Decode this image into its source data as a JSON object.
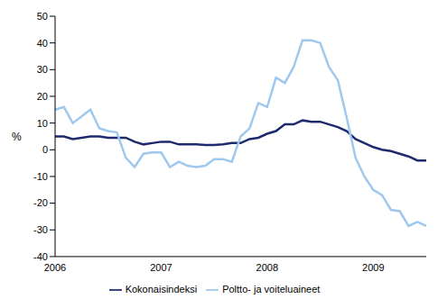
{
  "chart_data": {
    "type": "line",
    "y_label": "%",
    "categories": [
      "2006",
      null,
      null,
      null,
      null,
      null,
      null,
      null,
      null,
      null,
      null,
      null,
      "2007",
      null,
      null,
      null,
      null,
      null,
      null,
      null,
      null,
      null,
      null,
      null,
      "2008",
      null,
      null,
      null,
      null,
      null,
      null,
      null,
      null,
      null,
      null,
      null,
      "2009",
      null,
      null,
      null,
      null,
      null,
      null
    ],
    "series": [
      {
        "name": "Kokonaisindeksi",
        "color": "#1f2a6e",
        "values": [
          5,
          5,
          4,
          4.5,
          5,
          5,
          4.5,
          4.5,
          4.5,
          3,
          2,
          2.5,
          3,
          3,
          2,
          2,
          2,
          1.8,
          1.8,
          2,
          2.5,
          2.5,
          4,
          4.5,
          6,
          7,
          9.5,
          9.5,
          11,
          10.5,
          10.5,
          9.5,
          8.5,
          7,
          4,
          2.5,
          1,
          0,
          -0.5,
          -1.5,
          -2.5,
          -4,
          -4
        ]
      },
      {
        "name": "Poltto- ja voiteluaineet",
        "color": "#9fc8ef",
        "values": [
          15,
          16,
          10,
          12.5,
          15,
          8,
          7,
          6.5,
          -3,
          -6.5,
          -1.5,
          -1,
          -1,
          -6.5,
          -4.5,
          -6,
          -6.5,
          -6,
          -3.5,
          -3.5,
          -4.5,
          5,
          8,
          17.5,
          16,
          27,
          25,
          31,
          41,
          41,
          40,
          31,
          26,
          12,
          -3,
          -10,
          -15,
          -17,
          -22.5,
          -23,
          -28.5,
          -27,
          -28.5
        ]
      }
    ],
    "ylim": [
      -40,
      50
    ],
    "yticks": [
      -40,
      -30,
      -20,
      -10,
      0,
      10,
      20,
      30,
      40,
      50
    ],
    "legend": "bottom",
    "grid": false
  }
}
